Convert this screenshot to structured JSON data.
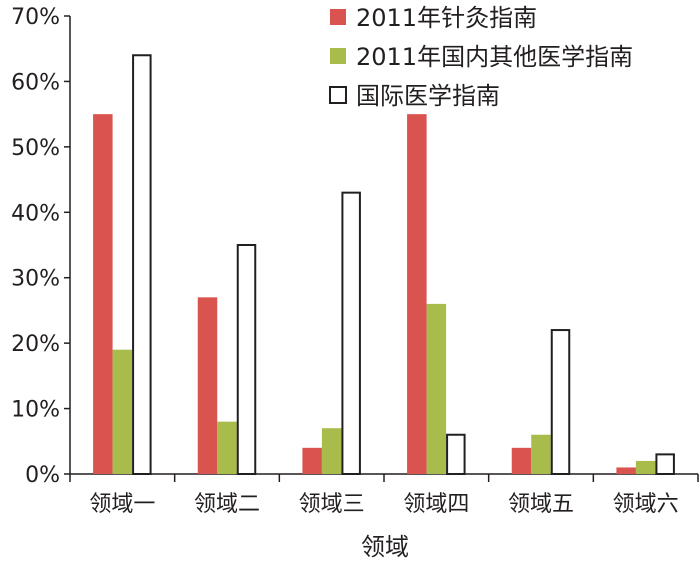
{
  "chart_data": {
    "type": "bar",
    "categories": [
      "领域一",
      "领域二",
      "领域三",
      "领域四",
      "领域五",
      "领域六"
    ],
    "series": [
      {
        "name": "2011年针灸指南",
        "values": [
          55,
          27,
          4,
          55,
          4,
          1
        ],
        "color": "#d9534f",
        "style": "filled"
      },
      {
        "name": "2011年国内其他医学指南",
        "values": [
          19,
          8,
          7,
          26,
          6,
          2
        ],
        "color": "#a8bc4c",
        "style": "filled"
      },
      {
        "name": "国际医学指南",
        "values": [
          64,
          35,
          43,
          6,
          22,
          3
        ],
        "color": "#ffffff",
        "style": "outline"
      }
    ],
    "xlabel": "领域",
    "ylabel": "",
    "ylim": [
      0,
      70
    ],
    "yticks": [
      0,
      10,
      20,
      30,
      40,
      50,
      60,
      70
    ],
    "ytick_labels": [
      "0%",
      "10%",
      "20%",
      "30%",
      "40%",
      "50%",
      "60%",
      "70%"
    ],
    "grid": false,
    "legend_position": "top-right"
  }
}
